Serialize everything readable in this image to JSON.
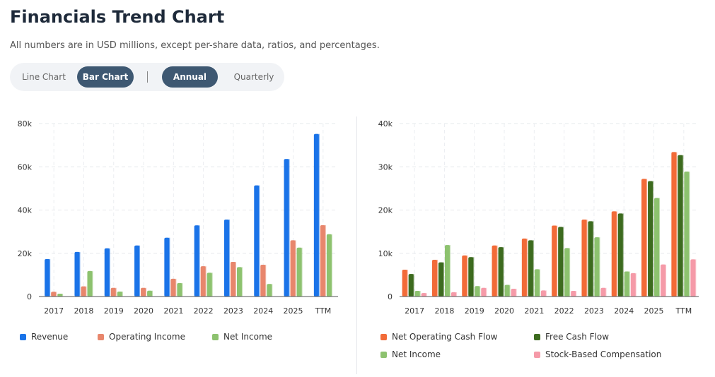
{
  "page": {
    "title": "Financials Trend Chart",
    "subtitle": "All numbers are in USD millions, except per-share data, ratios, and percentages."
  },
  "toggles": {
    "line_chart": "Line Chart",
    "bar_chart": "Bar Chart",
    "annual": "Annual",
    "quarterly": "Quarterly",
    "active_chart": "Bar Chart",
    "active_period": "Annual"
  },
  "chart_data": [
    {
      "type": "bar",
      "categories": [
        "2017",
        "2018",
        "2019",
        "2020",
        "2021",
        "2022",
        "2023",
        "2024",
        "2025",
        "TTM"
      ],
      "ylim": [
        0,
        80000
      ],
      "yticks": [
        0,
        20000,
        40000,
        60000,
        80000
      ],
      "ytick_labels": [
        "0",
        "20k",
        "40k",
        "60k",
        "80k"
      ],
      "grid": true,
      "legend_position": "bottom",
      "series": [
        {
          "name": "Revenue",
          "color": "#1a73e8",
          "values": [
            17300,
            20600,
            22300,
            23600,
            27200,
            32900,
            35600,
            51400,
            63600,
            75200
          ]
        },
        {
          "name": "Operating Income",
          "color": "#e8866c",
          "values": [
            2200,
            4700,
            4000,
            4000,
            8200,
            14000,
            16000,
            14700,
            26000,
            33000
          ]
        },
        {
          "name": "Net Income",
          "color": "#8dc26f",
          "values": [
            1300,
            11800,
            2300,
            2700,
            6200,
            11000,
            13600,
            5800,
            22600,
            28800
          ]
        }
      ]
    },
    {
      "type": "bar",
      "categories": [
        "2017",
        "2018",
        "2019",
        "2020",
        "2021",
        "2022",
        "2023",
        "2024",
        "2025",
        "TTM"
      ],
      "ylim": [
        0,
        40000
      ],
      "yticks": [
        0,
        10000,
        20000,
        30000,
        40000
      ],
      "ytick_labels": [
        "0",
        "10k",
        "20k",
        "30k",
        "40k"
      ],
      "grid": true,
      "legend_position": "bottom",
      "series": [
        {
          "name": "Net Operating Cash Flow",
          "color": "#f26b38",
          "values": [
            6200,
            8500,
            9500,
            11800,
            13400,
            16400,
            17800,
            19700,
            27200,
            33400
          ]
        },
        {
          "name": "Free Cash Flow",
          "color": "#3d6b1f",
          "values": [
            5200,
            7900,
            9100,
            11400,
            13000,
            16100,
            17400,
            19200,
            26700,
            32700
          ]
        },
        {
          "name": "Net Income",
          "color": "#8dc26f",
          "values": [
            1300,
            11900,
            2400,
            2700,
            6300,
            11200,
            13700,
            5800,
            22800,
            28900
          ]
        },
        {
          "name": "Stock-Based Compensation",
          "color": "#f59aa8",
          "values": [
            800,
            1000,
            2000,
            1800,
            1400,
            1300,
            2000,
            5400,
            7400,
            8600
          ]
        }
      ]
    }
  ]
}
